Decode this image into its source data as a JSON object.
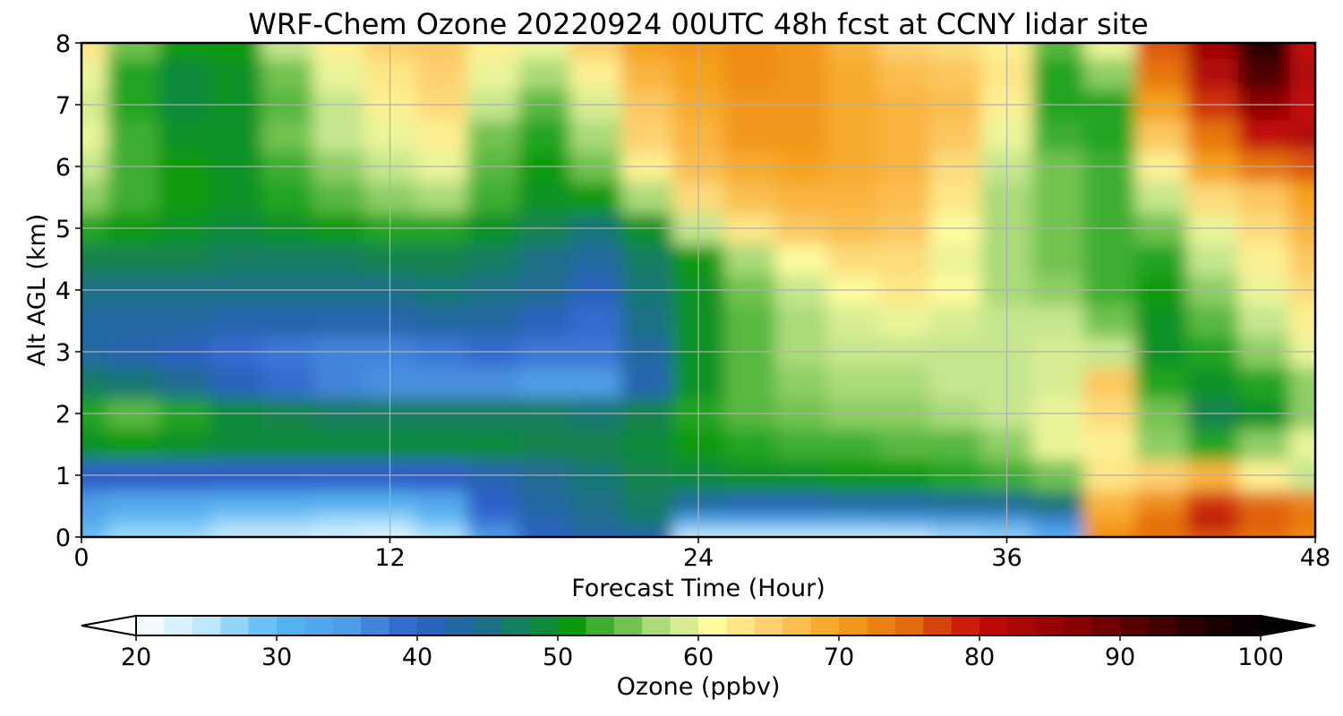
{
  "chart_data": {
    "type": "heatmap",
    "title": "WRF-Chem Ozone  20220924 00UTC 48h fcst at CCNY lidar site",
    "xlabel": "Forecast Time (Hour)",
    "ylabel": "Alt AGL (km)",
    "xlim": [
      0,
      48
    ],
    "ylim": [
      0,
      8
    ],
    "xticks": [
      0,
      12,
      24,
      36,
      48
    ],
    "yticks": [
      0,
      1,
      2,
      3,
      4,
      5,
      6,
      7,
      8
    ],
    "grid": true,
    "z_units": "ppbv",
    "colorbar": {
      "label": "Ozone  (ppbv)",
      "orientation": "horizontal",
      "min": 20,
      "max": 100,
      "ticks": [
        20,
        30,
        40,
        50,
        60,
        70,
        80,
        90,
        100
      ],
      "extend": "both",
      "color_stops": [
        {
          "v": 20,
          "c": "#ffffff"
        },
        {
          "v": 25,
          "c": "#bde7fb"
        },
        {
          "v": 30,
          "c": "#56b8f2"
        },
        {
          "v": 35,
          "c": "#4f9ce6"
        },
        {
          "v": 40,
          "c": "#2e5fc9"
        },
        {
          "v": 45,
          "c": "#1c6f86"
        },
        {
          "v": 49,
          "c": "#0f8a3a"
        },
        {
          "v": 51,
          "c": "#0a9a10"
        },
        {
          "v": 55,
          "c": "#72c250"
        },
        {
          "v": 58,
          "c": "#c6e68e"
        },
        {
          "v": 61,
          "c": "#fdfb9e"
        },
        {
          "v": 65,
          "c": "#fdd070"
        },
        {
          "v": 70,
          "c": "#f6a21e"
        },
        {
          "v": 75,
          "c": "#e36b0c"
        },
        {
          "v": 80,
          "c": "#c40a0a"
        },
        {
          "v": 88,
          "c": "#7d0000"
        },
        {
          "v": 95,
          "c": "#2a0000"
        },
        {
          "v": 100,
          "c": "#000000"
        }
      ]
    },
    "x_hours": [
      0,
      2,
      4,
      6,
      8,
      10,
      12,
      14,
      16,
      18,
      20,
      22,
      24,
      26,
      28,
      30,
      32,
      34,
      36,
      38,
      40,
      42,
      44,
      46,
      48
    ],
    "z_km": [
      0,
      0.25,
      0.5,
      1,
      1.5,
      2,
      2.5,
      3,
      3.5,
      4,
      4.5,
      5,
      5.5,
      6,
      6.5,
      7,
      7.5,
      8
    ],
    "ozone_ppbv": [
      [
        29,
        26,
        26,
        24,
        24,
        23,
        22,
        25,
        34,
        40,
        42,
        42,
        24,
        24,
        24,
        24,
        24,
        26,
        27,
        31,
        72,
        74,
        76,
        74,
        72
      ],
      [
        32,
        29,
        29,
        27,
        27,
        26,
        26,
        29,
        38,
        42,
        44,
        46,
        32,
        32,
        32,
        32,
        33,
        34,
        34,
        37,
        70,
        75,
        81,
        76,
        74
      ],
      [
        35,
        33,
        33,
        32,
        32,
        31,
        31,
        33,
        40,
        43,
        45,
        47,
        43,
        42,
        42,
        43,
        43,
        44,
        44,
        46,
        68,
        72,
        78,
        75,
        73
      ],
      [
        40,
        40,
        40,
        40,
        40,
        40,
        40,
        40,
        42,
        44,
        46,
        48,
        49,
        50,
        50,
        51,
        51,
        52,
        53,
        55,
        63,
        65,
        68,
        62,
        58
      ],
      [
        50,
        51,
        50,
        49,
        49,
        49,
        49,
        49,
        49,
        48,
        48,
        49,
        51,
        52,
        53,
        53,
        54,
        54,
        56,
        60,
        62,
        56,
        52,
        56,
        60
      ],
      [
        52,
        54,
        52,
        49,
        48,
        47,
        47,
        47,
        47,
        47,
        46,
        48,
        52,
        54,
        55,
        56,
        56,
        57,
        58,
        60,
        64,
        55,
        48,
        50,
        56
      ],
      [
        47,
        46,
        44,
        41,
        39,
        37,
        36,
        36,
        36,
        35,
        35,
        42,
        50,
        54,
        56,
        57,
        57,
        58,
        58,
        59,
        66,
        52,
        50,
        52,
        56
      ],
      [
        43,
        42,
        41,
        39,
        38,
        37,
        37,
        38,
        39,
        38,
        38,
        43,
        50,
        54,
        57,
        58,
        58,
        58,
        58,
        59,
        58,
        50,
        52,
        56,
        60
      ],
      [
        43,
        43,
        43,
        42,
        42,
        42,
        42,
        43,
        43,
        41,
        39,
        45,
        50,
        54,
        57,
        59,
        60,
        59,
        58,
        58,
        55,
        50,
        54,
        58,
        62
      ],
      [
        45,
        45,
        45,
        45,
        45,
        45,
        45,
        46,
        45,
        44,
        41,
        46,
        50,
        55,
        58,
        61,
        63,
        61,
        57,
        56,
        53,
        51,
        56,
        60,
        64
      ],
      [
        48,
        48,
        48,
        47,
        47,
        47,
        48,
        48,
        47,
        45,
        43,
        47,
        51,
        57,
        61,
        64,
        64,
        60,
        57,
        55,
        53,
        52,
        58,
        62,
        66
      ],
      [
        52,
        51,
        50,
        49,
        50,
        51,
        52,
        52,
        50,
        48,
        46,
        50,
        58,
        63,
        66,
        67,
        66,
        61,
        57,
        55,
        53,
        55,
        60,
        64,
        68
      ],
      [
        56,
        53,
        51,
        50,
        52,
        54,
        56,
        57,
        53,
        50,
        51,
        57,
        64,
        67,
        68,
        68,
        67,
        63,
        57,
        55,
        53,
        58,
        64,
        66,
        70
      ],
      [
        58,
        53,
        51,
        50,
        53,
        56,
        58,
        60,
        54,
        51,
        55,
        62,
        67,
        69,
        70,
        69,
        68,
        64,
        58,
        55,
        53,
        62,
        70,
        74,
        76
      ],
      [
        60,
        53,
        50,
        50,
        55,
        58,
        60,
        62,
        55,
        52,
        57,
        65,
        68,
        71,
        71,
        69,
        68,
        66,
        60,
        53,
        52,
        66,
        74,
        80,
        82
      ],
      [
        59,
        52,
        49,
        50,
        54,
        58,
        62,
        64,
        58,
        54,
        59,
        66,
        69,
        71,
        71,
        69,
        68,
        67,
        62,
        52,
        52,
        70,
        78,
        86,
        80
      ],
      [
        60,
        52,
        49,
        50,
        55,
        60,
        63,
        65,
        60,
        57,
        62,
        68,
        70,
        72,
        71,
        69,
        67,
        66,
        63,
        52,
        56,
        74,
        82,
        92,
        82
      ],
      [
        63,
        55,
        51,
        51,
        58,
        62,
        65,
        66,
        62,
        60,
        65,
        70,
        71,
        72,
        71,
        68,
        65,
        64,
        62,
        54,
        60,
        76,
        84,
        96,
        80
      ]
    ]
  }
}
